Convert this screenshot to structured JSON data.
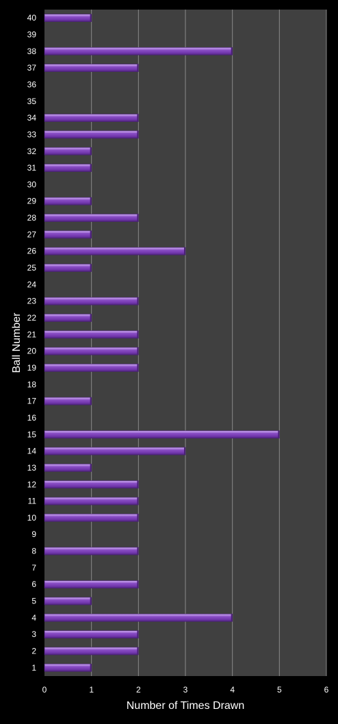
{
  "chart_data": {
    "type": "bar",
    "orientation": "horizontal",
    "title": "",
    "xlabel": "Number of Times Drawn",
    "ylabel": "Ball Number",
    "xlim": [
      0,
      6
    ],
    "x_ticks": [
      "0",
      "1",
      "2",
      "3",
      "4",
      "5",
      "6"
    ],
    "grid": true,
    "legend": "none",
    "categories": [
      "1",
      "2",
      "3",
      "4",
      "5",
      "6",
      "7",
      "8",
      "9",
      "10",
      "11",
      "12",
      "13",
      "14",
      "15",
      "16",
      "17",
      "18",
      "19",
      "20",
      "21",
      "22",
      "23",
      "24",
      "25",
      "26",
      "27",
      "28",
      "29",
      "30",
      "31",
      "32",
      "33",
      "34",
      "35",
      "36",
      "37",
      "38",
      "39",
      "40"
    ],
    "values": [
      1,
      2,
      2,
      4,
      1,
      2,
      0,
      2,
      0,
      2,
      2,
      2,
      1,
      3,
      5,
      0,
      1,
      0,
      2,
      2,
      2,
      1,
      2,
      0,
      1,
      3,
      1,
      2,
      1,
      0,
      1,
      1,
      2,
      2,
      0,
      0,
      2,
      4,
      0,
      1
    ]
  },
  "colors": {
    "background": "#000000",
    "plot_area": "#404040",
    "gridline": "#8a8a8a",
    "bar": "#7b3fb5",
    "bar_highlight": "#b48ae0",
    "bar_shadow": "#4b2277",
    "text": "#ffffff"
  }
}
